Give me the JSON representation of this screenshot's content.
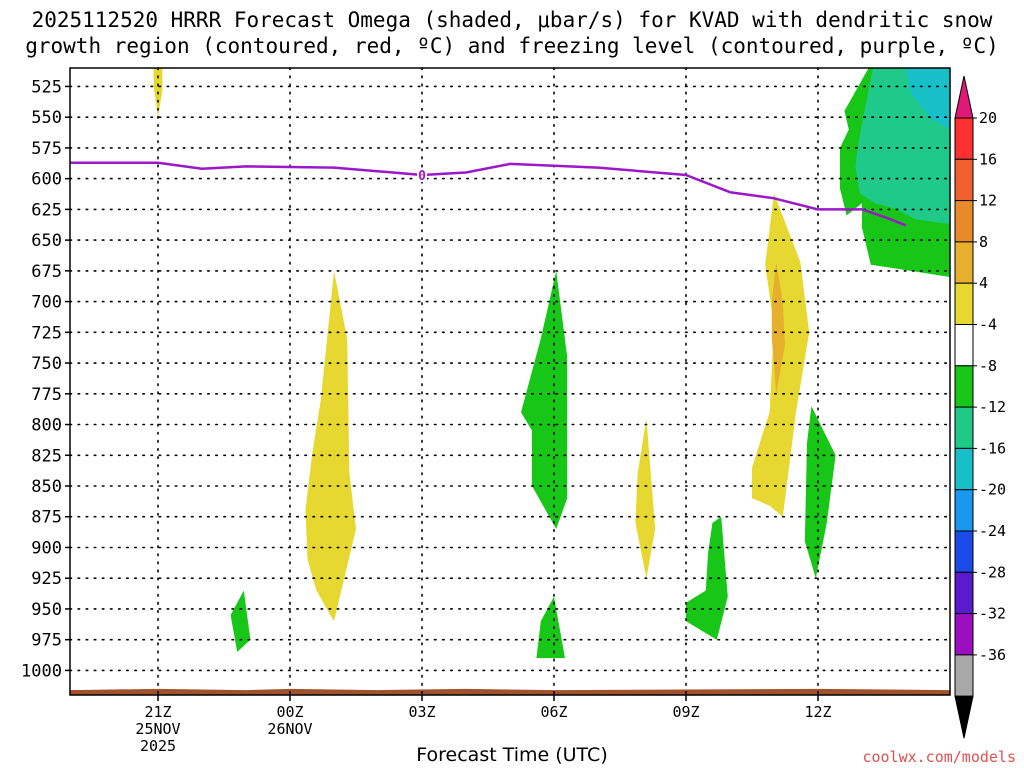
{
  "title": {
    "line1": "2025112520 HRRR Forecast Omega (shaded, μbar/s) for KVAD with dendritic snow",
    "line2": "growth region (contoured, red, ºC) and freezing level (contoured, purple, ºC)"
  },
  "footer": {
    "xlabel": "Forecast Time (UTC)",
    "credit": "coolwx.com/models"
  },
  "chart_data": {
    "type": "time-height cross section",
    "x_axis": {
      "unit": "forecast hour (UTC)",
      "range_hours": [
        -2,
        18
      ],
      "ticks": [
        {
          "hour": 0,
          "lines": [
            "21Z",
            "25NOV",
            "2025"
          ]
        },
        {
          "hour": 3,
          "lines": [
            "00Z",
            "26NOV"
          ]
        },
        {
          "hour": 6,
          "lines": [
            "03Z"
          ]
        },
        {
          "hour": 9,
          "lines": [
            "06Z"
          ]
        },
        {
          "hour": 12,
          "lines": [
            "09Z"
          ]
        },
        {
          "hour": 15,
          "lines": [
            "12Z"
          ]
        }
      ]
    },
    "y_axis": {
      "unit": "hPa",
      "range": [
        1020,
        510
      ],
      "ticks": [
        525,
        550,
        575,
        600,
        625,
        650,
        675,
        700,
        725,
        750,
        775,
        800,
        825,
        850,
        875,
        900,
        925,
        950,
        975,
        1000
      ]
    },
    "colorbar": {
      "labels": [
        "20",
        "16",
        "12",
        "8",
        "4",
        "-4",
        "-8",
        "-12",
        "-16",
        "-20",
        "-24",
        "-28",
        "-32",
        "-36"
      ],
      "colors": [
        "#ff3030",
        "#f06030",
        "#e88a2a",
        "#e6b02c",
        "#e6d830",
        "#ffffff",
        "#17c617",
        "#1fc98a",
        "#17c0c8",
        "#1a98f0",
        "#1a4ae8",
        "#5a1ad0",
        "#9a10c0",
        "#a8a8a8"
      ],
      "top_arrow_color": "#e01878",
      "bottom_arrow_color": "#000000"
    },
    "freezing_level": {
      "color": "#9a18c8",
      "label": "0",
      "hours": [
        -2,
        0,
        1,
        2,
        4,
        6,
        7,
        8,
        10,
        12,
        13,
        14,
        15,
        16,
        16.5,
        17
      ],
      "hPa": [
        587,
        587,
        592,
        590,
        591,
        597,
        595,
        588,
        591,
        597,
        611,
        616,
        625,
        625,
        631,
        638
      ]
    },
    "terrain": {
      "color": "#a0522d",
      "note": "surface near 1015 hPa"
    },
    "regions": [
      {
        "sign": "up",
        "range": "4 to 8",
        "color": "#e6d830",
        "pts": [
          [
            -0.1,
            510
          ],
          [
            0.1,
            510
          ],
          [
            0.1,
            528
          ],
          [
            0,
            550
          ],
          [
            -0.1,
            525
          ]
        ]
      },
      {
        "sign": "up",
        "range": "4 to 8",
        "color": "#e6d830",
        "pts": [
          [
            4,
            675
          ],
          [
            4.3,
            730
          ],
          [
            4.35,
            840
          ],
          [
            4.5,
            885
          ],
          [
            4.2,
            930
          ],
          [
            4,
            960
          ],
          [
            3.6,
            935
          ],
          [
            3.4,
            910
          ],
          [
            3.35,
            870
          ],
          [
            3.5,
            825
          ],
          [
            3.7,
            780
          ],
          [
            3.9,
            710
          ]
        ]
      },
      {
        "sign": "up",
        "range": "4 to 8",
        "color": "#e6d830",
        "pts": [
          [
            14.0,
            612
          ],
          [
            14.6,
            668
          ],
          [
            14.8,
            725
          ],
          [
            14.5,
            790
          ],
          [
            14.2,
            875
          ],
          [
            13.9,
            866
          ],
          [
            13.5,
            860
          ],
          [
            13.5,
            835
          ],
          [
            13.9,
            790
          ],
          [
            14.0,
            720
          ],
          [
            13.8,
            670
          ]
        ]
      },
      {
        "sign": "up",
        "range": "8 to 12",
        "color": "#e6b02c",
        "pts": [
          [
            14.05,
            668
          ],
          [
            14.2,
            700
          ],
          [
            14.25,
            735
          ],
          [
            14.05,
            775
          ],
          [
            13.95,
            730
          ],
          [
            13.95,
            700
          ]
        ]
      },
      {
        "sign": "up",
        "range": "4 to 8",
        "color": "#e6d830",
        "pts": [
          [
            11.1,
            795
          ],
          [
            11.3,
            885
          ],
          [
            11.1,
            925
          ],
          [
            10.85,
            880
          ],
          [
            10.9,
            840
          ]
        ]
      },
      {
        "sign": "down",
        "range": "-4 to -8",
        "color": "#17c617",
        "pts": [
          [
            9.05,
            675
          ],
          [
            9.3,
            745
          ],
          [
            9.3,
            860
          ],
          [
            9.05,
            885
          ],
          [
            8.5,
            850
          ],
          [
            8.5,
            805
          ],
          [
            8.25,
            790
          ],
          [
            8.7,
            730
          ]
        ]
      },
      {
        "sign": "down",
        "range": "-4 to -8",
        "color": "#17c617",
        "pts": [
          [
            9.0,
            940
          ],
          [
            9.25,
            990
          ],
          [
            8.6,
            990
          ],
          [
            8.7,
            960
          ]
        ]
      },
      {
        "sign": "down",
        "range": "-4 to -8",
        "color": "#17c617",
        "pts": [
          [
            1.95,
            935
          ],
          [
            2.1,
            975
          ],
          [
            1.8,
            985
          ],
          [
            1.65,
            955
          ]
        ]
      },
      {
        "sign": "down",
        "range": "-4 to -8",
        "color": "#17c617",
        "pts": [
          [
            12.6,
            880
          ],
          [
            12.8,
            875
          ],
          [
            12.95,
            940
          ],
          [
            12.7,
            975
          ],
          [
            12.0,
            960
          ],
          [
            12.0,
            945
          ],
          [
            12.45,
            935
          ],
          [
            12.5,
            905
          ]
        ]
      },
      {
        "sign": "down",
        "range": "-4 to -8",
        "color": "#17c617",
        "pts": [
          [
            14.85,
            785
          ],
          [
            15.4,
            825
          ],
          [
            15.2,
            880
          ],
          [
            14.95,
            925
          ],
          [
            14.7,
            895
          ],
          [
            14.75,
            815
          ]
        ]
      },
      {
        "sign": "down",
        "range": "-4 to -8",
        "color": "#17c617",
        "pts": [
          [
            16.15,
            510
          ],
          [
            18,
            510
          ],
          [
            18,
            680
          ],
          [
            16.2,
            670
          ],
          [
            16.0,
            640
          ],
          [
            16.0,
            620
          ],
          [
            15.65,
            630
          ],
          [
            15.5,
            608
          ],
          [
            15.5,
            575
          ],
          [
            15.7,
            560
          ],
          [
            15.6,
            545
          ]
        ]
      },
      {
        "sign": "down",
        "range": "-8 to -12",
        "color": "#1fc98a",
        "pts": [
          [
            16.25,
            510
          ],
          [
            18,
            510
          ],
          [
            18,
            637
          ],
          [
            17.2,
            633
          ],
          [
            16.8,
            625
          ],
          [
            16.3,
            620
          ],
          [
            15.95,
            612
          ],
          [
            15.85,
            590
          ],
          [
            15.9,
            575
          ],
          [
            16.0,
            555
          ]
        ]
      },
      {
        "sign": "down",
        "range": "-12 to -16",
        "color": "#17c0c8",
        "pts": [
          [
            17.0,
            510
          ],
          [
            18,
            510
          ],
          [
            18,
            560
          ],
          [
            17.6,
            552
          ],
          [
            17.1,
            530
          ]
        ]
      }
    ]
  }
}
